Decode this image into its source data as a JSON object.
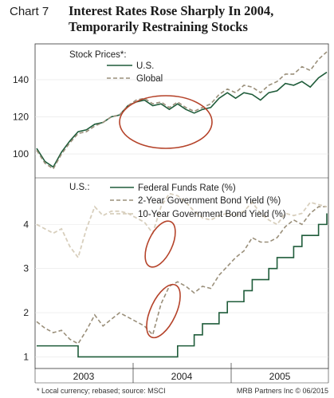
{
  "header": {
    "chart_label": "Chart 7",
    "title_line1": "Interest Rates Rose Sharply In 2004,",
    "title_line2": "Temporarily Restraining Stocks"
  },
  "footer": {
    "note": "* Local currency; rebased; source: MSCI",
    "credit": "MRB Partners Inc © 06/2015"
  },
  "colors": {
    "us_stocks": "#1f5c3a",
    "global_stocks": "#9a8f7a",
    "fed_funds": "#1f5c3a",
    "two_year": "#9a8f7a",
    "ten_year": "#d8cfbd",
    "highlight_circle": "#b5432a"
  },
  "chart_data": [
    {
      "type": "line",
      "legend_title": "Stock Prices*:",
      "legend_placement": "top-left",
      "ylim": [
        88,
        158
      ],
      "yticks": [
        100,
        120,
        140
      ],
      "ytick_labels": [
        "100",
        "120",
        "140"
      ],
      "x_range": [
        "2003-01",
        "2005-12"
      ],
      "series": [
        {
          "name": "U.S.",
          "style": "solid",
          "x": [
            "2003-01",
            "2003-02",
            "2003-03",
            "2003-04",
            "2003-05",
            "2003-06",
            "2003-07",
            "2003-08",
            "2003-09",
            "2003-10",
            "2003-11",
            "2003-12",
            "2004-01",
            "2004-02",
            "2004-03",
            "2004-04",
            "2004-05",
            "2004-06",
            "2004-07",
            "2004-08",
            "2004-09",
            "2004-10",
            "2004-11",
            "2004-12",
            "2005-01",
            "2005-02",
            "2005-03",
            "2005-04",
            "2005-05",
            "2005-06",
            "2005-07",
            "2005-08",
            "2005-09",
            "2005-10",
            "2005-11",
            "2005-12"
          ],
          "values": [
            103,
            96,
            93,
            101,
            107,
            112,
            113,
            116,
            117,
            120,
            121,
            126,
            128,
            129,
            126,
            127,
            124,
            127,
            124,
            122,
            124,
            125,
            130,
            133,
            130,
            133,
            132,
            129,
            133,
            134,
            138,
            137,
            139,
            136,
            141,
            144
          ]
        },
        {
          "name": "Global",
          "style": "dashed",
          "x": [
            "2003-01",
            "2003-02",
            "2003-03",
            "2003-04",
            "2003-05",
            "2003-06",
            "2003-07",
            "2003-08",
            "2003-09",
            "2003-10",
            "2003-11",
            "2003-12",
            "2004-01",
            "2004-02",
            "2004-03",
            "2004-04",
            "2004-05",
            "2004-06",
            "2004-07",
            "2004-08",
            "2004-09",
            "2004-10",
            "2004-11",
            "2004-12",
            "2005-01",
            "2005-02",
            "2005-03",
            "2005-04",
            "2005-05",
            "2005-06",
            "2005-07",
            "2005-08",
            "2005-09",
            "2005-10",
            "2005-11",
            "2005-12"
          ],
          "values": [
            102,
            95,
            92,
            100,
            106,
            111,
            112,
            115,
            117,
            120,
            121,
            126,
            129,
            130,
            127,
            128,
            125,
            128,
            125,
            123,
            125,
            127,
            132,
            135,
            133,
            137,
            136,
            133,
            137,
            139,
            143,
            143,
            147,
            145,
            151,
            155
          ]
        }
      ]
    },
    {
      "type": "line",
      "legend_title": "U.S.:",
      "legend_placement": "top-left",
      "ylim": [
        0.9,
        5.0
      ],
      "yticks": [
        1,
        2,
        3,
        4
      ],
      "ytick_labels": [
        "1",
        "2",
        "3",
        "4"
      ],
      "xtick_labels": [
        "2003",
        "2004",
        "2005"
      ],
      "x_range": [
        "2003-01",
        "2005-12"
      ],
      "series": [
        {
          "name": "Federal Funds Rate (%)",
          "style": "step",
          "x": [
            "2003-01",
            "2003-06",
            "2004-06",
            "2004-08",
            "2004-09",
            "2004-11",
            "2004-12",
            "2005-02",
            "2005-03",
            "2005-05",
            "2005-06",
            "2005-08",
            "2005-09",
            "2005-11",
            "2005-12"
          ],
          "values": [
            1.25,
            1.0,
            1.25,
            1.5,
            1.75,
            2.0,
            2.25,
            2.5,
            2.75,
            3.0,
            3.25,
            3.5,
            3.75,
            4.0,
            4.25
          ]
        },
        {
          "name": "2-Year Government Bond Yield (%)",
          "style": "dashed",
          "x": [
            "2003-01",
            "2003-02",
            "2003-03",
            "2003-04",
            "2003-05",
            "2003-06",
            "2003-07",
            "2003-08",
            "2003-09",
            "2003-10",
            "2003-11",
            "2003-12",
            "2004-01",
            "2004-02",
            "2004-03",
            "2004-04",
            "2004-05",
            "2004-06",
            "2004-07",
            "2004-08",
            "2004-09",
            "2004-10",
            "2004-11",
            "2004-12",
            "2005-01",
            "2005-02",
            "2005-03",
            "2005-04",
            "2005-05",
            "2005-06",
            "2005-07",
            "2005-08",
            "2005-09",
            "2005-10",
            "2005-11",
            "2005-12"
          ],
          "values": [
            1.8,
            1.65,
            1.55,
            1.6,
            1.4,
            1.3,
            1.6,
            1.95,
            1.7,
            1.85,
            2.0,
            1.9,
            1.8,
            1.7,
            1.5,
            2.2,
            2.6,
            2.7,
            2.6,
            2.45,
            2.6,
            2.55,
            2.85,
            3.05,
            3.25,
            3.4,
            3.7,
            3.6,
            3.6,
            3.7,
            3.95,
            4.1,
            4.0,
            4.25,
            4.4,
            4.4
          ]
        },
        {
          "name": "10-Year Government Bond Yield (%)",
          "style": "dashed-light",
          "x": [
            "2003-01",
            "2003-02",
            "2003-03",
            "2003-04",
            "2003-05",
            "2003-06",
            "2003-07",
            "2003-08",
            "2003-09",
            "2003-10",
            "2003-11",
            "2003-12",
            "2004-01",
            "2004-02",
            "2004-03",
            "2004-04",
            "2004-05",
            "2004-06",
            "2004-07",
            "2004-08",
            "2004-09",
            "2004-10",
            "2004-11",
            "2004-12",
            "2005-01",
            "2005-02",
            "2005-03",
            "2005-04",
            "2005-05",
            "2005-06",
            "2005-07",
            "2005-08",
            "2005-09",
            "2005-10",
            "2005-11",
            "2005-12"
          ],
          "values": [
            4.0,
            3.9,
            3.8,
            3.9,
            3.5,
            3.25,
            3.9,
            4.4,
            4.2,
            4.3,
            4.3,
            4.25,
            4.15,
            4.05,
            3.8,
            4.4,
            4.7,
            4.65,
            4.5,
            4.3,
            4.15,
            4.1,
            4.2,
            4.25,
            4.2,
            4.3,
            4.5,
            4.25,
            4.1,
            4.0,
            4.25,
            4.2,
            4.25,
            4.5,
            4.45,
            4.4
          ]
        }
      ]
    }
  ]
}
